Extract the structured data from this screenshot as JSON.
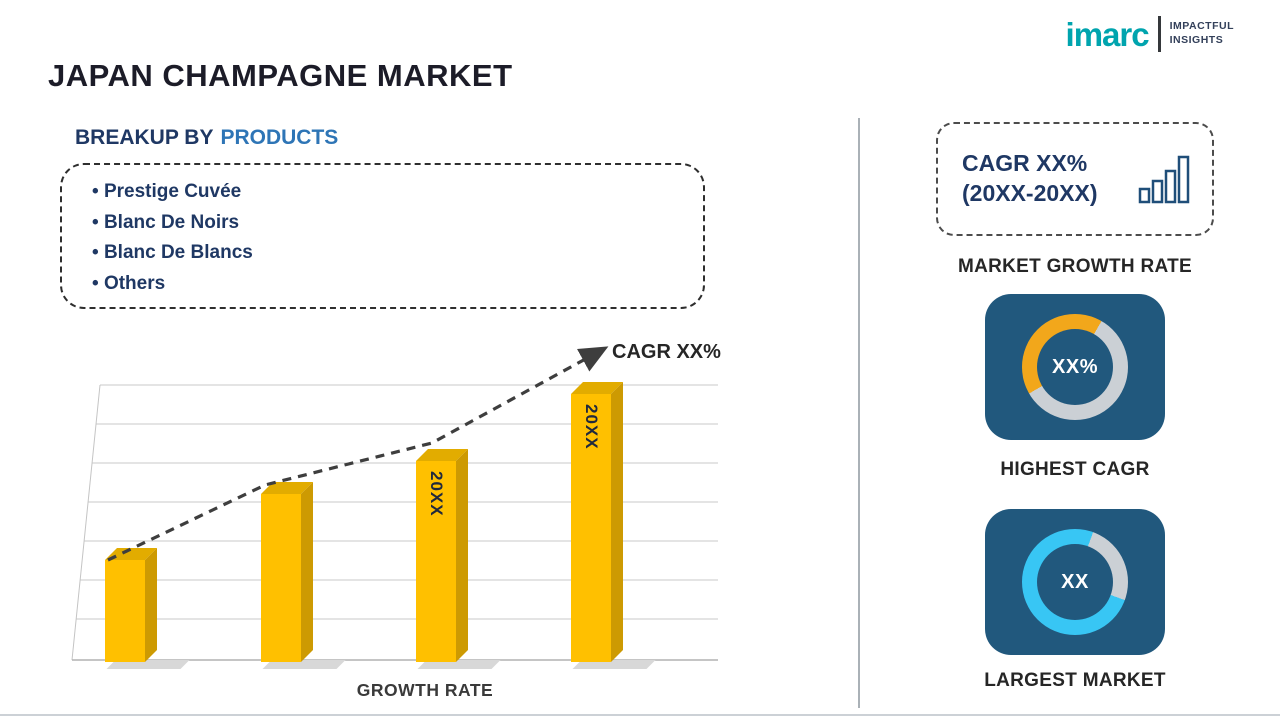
{
  "header": {
    "title": "JAPAN CHAMPAGNE MARKET"
  },
  "logo": {
    "brand": "imarc",
    "tagline_line1": "IMPACTFUL",
    "tagline_line2": "INSIGHTS",
    "brand_color": "#00A4AE"
  },
  "breakup": {
    "heading_prefix": "BREAKUP BY",
    "heading_highlight": "PRODUCTS",
    "items": [
      "Prestige Cuvée",
      "Blanc De Noirs",
      "Blanc De Blancs",
      "Others"
    ]
  },
  "chart_data": {
    "type": "bar",
    "title": "",
    "categories": [
      "20XX",
      "20XX",
      "20XX",
      "20XX"
    ],
    "values": [
      37,
      61,
      73,
      97
    ],
    "bar_labels": [
      "",
      "",
      "20XX",
      "20XX"
    ],
    "xlabel": "GROWTH RATE",
    "ylabel": "",
    "ylim": [
      0,
      100
    ],
    "grid": true,
    "bar_color": "#FFC000",
    "trend_label": "CAGR XX%",
    "trend_style": "dashed-arrow-increasing",
    "legend": "none"
  },
  "right_panel": {
    "cagr_card": {
      "line1": "CAGR XX%",
      "line2": "(20XX-20XX)"
    },
    "section_labels": {
      "growth": "MARKET GROWTH RATE"
    },
    "stat_cards": [
      {
        "value": "XX%",
        "label": "HIGHEST CAGR",
        "accent": "#F2A71B",
        "ring_base": "#CBD0D5",
        "ring_from_deg": 240,
        "ring_sweep_deg": 150
      },
      {
        "value": "XX",
        "label": "LARGEST MARKET",
        "accent": "#38C6F4",
        "ring_base": "#CBD0D5",
        "ring_from_deg": 110,
        "ring_sweep_deg": 270
      }
    ],
    "card_bg": "#21587D"
  }
}
